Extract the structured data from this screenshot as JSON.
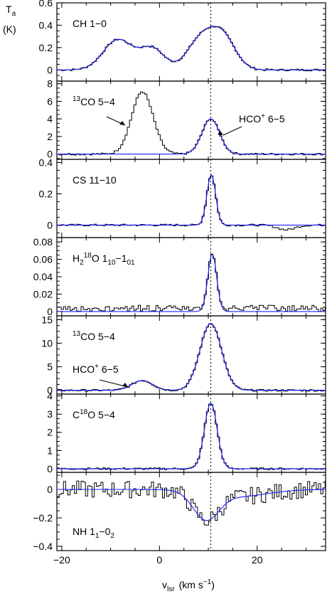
{
  "chart_data": {
    "type": "line",
    "ylabel_main": "T",
    "ylabel_sub": "a",
    "ylabel_unit": "(K)",
    "xlabel_main": "v",
    "xlabel_sub": "lsr",
    "xlabel_unit": "(km s",
    "xlabel_exp": "−1",
    "xlabel_close": ")",
    "xlim": [
      -21,
      34
    ],
    "xticks": [
      -20,
      0,
      20
    ],
    "xtick_labels": [
      "−20",
      "0",
      "20"
    ],
    "reference_velocity": 10.5,
    "colors": {
      "observed": "#000000",
      "fit": "#2020ff"
    },
    "panels": [
      {
        "ylim": [
          -0.1,
          0.6
        ],
        "yticks": [
          0,
          0.2,
          0.4,
          0.6
        ],
        "ytick_labels": [
          "0",
          "0.2",
          "0.4",
          "0.6"
        ],
        "label_main": "CH  1−0",
        "label_sub": "",
        "components": [
          {
            "role": "both",
            "center": -8.5,
            "amp": 0.27,
            "width": 3.0
          },
          {
            "role": "both",
            "center": -1.5,
            "amp": 0.19,
            "width": 2.5
          },
          {
            "role": "both",
            "center": 8.5,
            "amp": 0.27,
            "width": 2.8
          },
          {
            "role": "both",
            "center": 13.0,
            "amp": 0.28,
            "width": 2.6
          }
        ]
      },
      {
        "ylim": [
          -0.6,
          8.3
        ],
        "yticks": [
          0,
          2,
          4,
          6,
          8
        ],
        "ytick_labels": [
          "0",
          "2",
          "4",
          "6",
          "8"
        ],
        "label_main": "CO 5−4",
        "label_pre_sup": "13",
        "annotations": [
          {
            "main": "HCO",
            "sup": "+",
            "rest": " 6−5"
          }
        ],
        "components": [
          {
            "role": "obs",
            "center": -3.5,
            "amp": 7.1,
            "width": 2.2
          },
          {
            "role": "both",
            "center": 10.5,
            "amp": 4.0,
            "width": 1.8
          }
        ]
      },
      {
        "ylim": [
          -0.08,
          0.42
        ],
        "yticks": [
          0,
          0.2,
          0.4
        ],
        "ytick_labels": [
          "0",
          "0.2",
          "0.4"
        ],
        "label_main": "CS  11−10",
        "components": [
          {
            "role": "both",
            "center": 10.6,
            "amp": 0.32,
            "width": 0.9
          },
          {
            "role": "obs",
            "center": 26.0,
            "amp": -0.03,
            "width": 1.8
          }
        ]
      },
      {
        "ylim": [
          -0.005,
          0.085
        ],
        "yticks": [
          0,
          0.02,
          0.04,
          0.06,
          0.08
        ],
        "ytick_labels": [
          "0",
          "0.02",
          "0.04",
          "0.06",
          "0.08"
        ],
        "label_H": "H",
        "label_2": "2",
        "label_18": "18",
        "label_O": "O 1",
        "label_10": "10",
        "label_dash": "−1",
        "label_01": "01",
        "components": [
          {
            "role": "both",
            "center": 10.8,
            "amp": 0.066,
            "width": 0.9
          }
        ]
      },
      {
        "ylim": [
          -0.8,
          15.8
        ],
        "yticks": [
          0,
          5,
          10,
          15
        ],
        "ytick_labels": [
          "0",
          "5",
          "10",
          "15"
        ],
        "label_main": "CO 5−4",
        "label_pre_sup": "13",
        "annotations": [
          {
            "main": "HCO",
            "sup": "+",
            "rest": " 6−5"
          }
        ],
        "components": [
          {
            "role": "both",
            "center": -3.5,
            "amp": 2.1,
            "width": 2.1
          },
          {
            "role": "both",
            "center": 10.5,
            "amp": 14.2,
            "width": 2.2
          }
        ]
      },
      {
        "ylim": [
          -0.2,
          4.1
        ],
        "yticks": [
          0,
          1,
          2,
          3,
          4
        ],
        "ytick_labels": [
          "0",
          "1",
          "2",
          "3",
          "4"
        ],
        "label_main": "C",
        "label_18": "18",
        "label_rest": "O 5−4",
        "components": [
          {
            "role": "both",
            "center": 10.5,
            "amp": 3.6,
            "width": 1.3
          }
        ]
      },
      {
        "ylim": [
          -0.43,
          0.12
        ],
        "yticks": [
          -0.4,
          -0.2,
          0
        ],
        "ytick_labels": [
          "−0.4",
          "−0.2",
          "0"
        ],
        "label_main": "NH 1",
        "label_sub1": "1",
        "label_dash": "−0",
        "label_sub2": "2",
        "components": [
          {
            "role": "both",
            "center": 9.5,
            "amp": -0.19,
            "width": 2.6
          },
          {
            "role": "both",
            "center": 16.0,
            "amp": -0.05,
            "width": 6.0
          }
        ]
      }
    ]
  }
}
